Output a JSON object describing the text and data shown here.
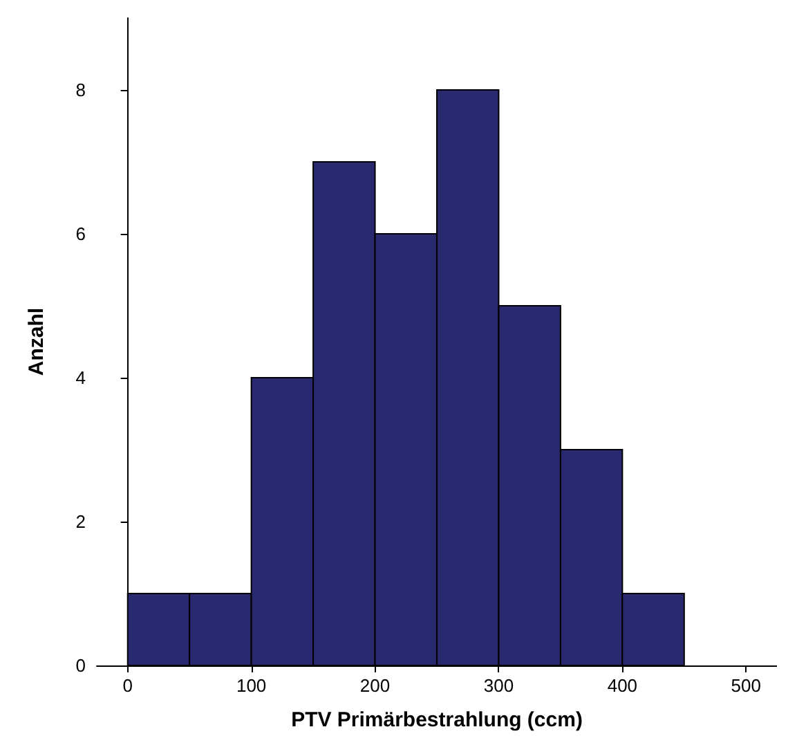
{
  "chart_data": {
    "type": "histogram",
    "xlabel": "PTV Primärbestrahlung (ccm)",
    "ylabel": "Anzahl",
    "bins": [
      0,
      50,
      100,
      150,
      200,
      250,
      300,
      350,
      400,
      450
    ],
    "values": [
      1,
      1,
      4,
      7,
      6,
      8,
      5,
      3,
      1
    ],
    "color": "#29296f",
    "xlim": [
      -25,
      525
    ],
    "xticks": [
      0,
      100,
      200,
      300,
      400,
      500
    ],
    "ylim": [
      0,
      9
    ],
    "yticks": [
      0,
      2,
      4,
      6,
      8
    ],
    "grid": false
  }
}
